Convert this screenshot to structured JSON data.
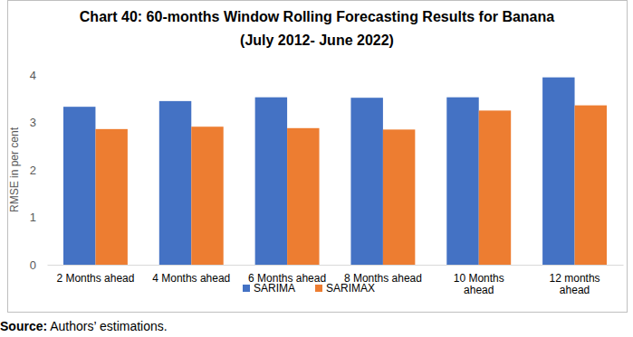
{
  "chart_data": {
    "type": "bar",
    "title": "Chart 40: 60-months Window Rolling Forecasting Results for Banana",
    "subtitle": "(July 2012- June 2022)",
    "y_label": "RMSE in per cent",
    "source": "Source: Authors’ estimations.",
    "categories": [
      "2 Months ahead",
      "4 Months ahead",
      "6 Months ahead",
      "8 Months ahead",
      "10 Months ahead",
      "12 months ahead"
    ],
    "series": [
      {
        "name": "SARIMA",
        "color": "#4472c4",
        "values": [
          3.33,
          3.45,
          3.53,
          3.52,
          3.53,
          3.95
        ]
      },
      {
        "name": "SARIMAX",
        "color": "#ed7d31",
        "values": [
          2.86,
          2.91,
          2.88,
          2.85,
          3.25,
          3.36
        ]
      }
    ],
    "ylim": [
      0,
      4
    ],
    "yticks": [
      0,
      1,
      2,
      3,
      4
    ],
    "grid": false,
    "legend": "bottom"
  }
}
